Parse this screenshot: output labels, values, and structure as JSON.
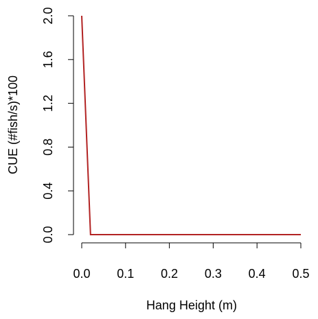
{
  "chart_data": {
    "type": "line",
    "title": "",
    "xlabel": "Hang Height (m)",
    "ylabel": "CUE (#fish/s)*100",
    "xlim": [
      0,
      0.5
    ],
    "ylim": [
      0,
      2.0
    ],
    "x_ticks": [
      0.0,
      0.1,
      0.2,
      0.3,
      0.4,
      0.5
    ],
    "x_tick_labels": [
      "0.0",
      "0.1",
      "0.2",
      "0.3",
      "0.4",
      "0.5"
    ],
    "y_ticks": [
      0.0,
      0.4,
      0.8,
      1.2,
      1.6,
      2.0
    ],
    "y_tick_labels": [
      "0.0",
      "0.4",
      "0.8",
      "1.2",
      "1.6",
      "2.0"
    ],
    "grid": false,
    "legend": "none",
    "series": [
      {
        "color": "#b22222",
        "x": [
          0.0,
          0.02,
          0.5
        ],
        "y": [
          2.0,
          0.0,
          0.0
        ]
      }
    ]
  }
}
